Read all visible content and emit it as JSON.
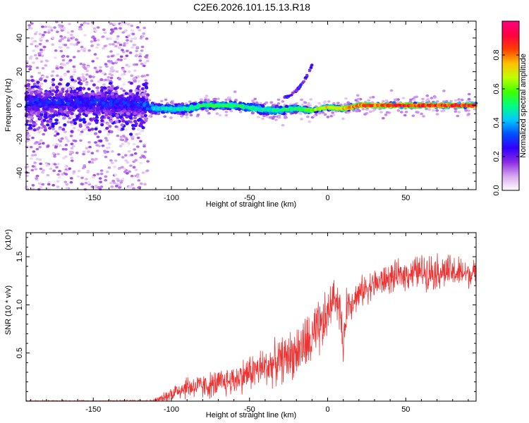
{
  "title": "C2E6.2026.101.15.13.R18",
  "chart_data": [
    {
      "type": "heatmap",
      "xlabel": "Height of straight line (km)",
      "ylabel": "Frequency (Hz)",
      "xlim": [
        -193,
        95
      ],
      "ylim": [
        -50,
        50
      ],
      "xticks": [
        -150,
        -100,
        -50,
        0,
        50
      ],
      "yticks": [
        -40,
        -20,
        0,
        20,
        40
      ],
      "xtick_labels": [
        "-150",
        "-100",
        "-50",
        "0",
        "50"
      ],
      "ytick_labels": [
        "-40",
        "-20",
        "0",
        "20",
        "40"
      ],
      "colorbar": {
        "label": "Normalized spectral amplitude",
        "range": [
          0.0,
          1.0
        ],
        "ticks": [
          0.0,
          0.2,
          0.4,
          0.6,
          0.8
        ],
        "tick_labels": [
          "0.0",
          "0.2",
          "0.4",
          "0.6",
          "0.8"
        ],
        "colors": [
          "#ffffff",
          "#d8a8f0",
          "#8a2be2",
          "#3000ff",
          "#0050ff",
          "#00c8ff",
          "#00ff80",
          "#40ff00",
          "#c0ff00",
          "#ffc000",
          "#ff4000",
          "#ff0040",
          "#ff0080"
        ]
      },
      "band": {
        "center_x": [
          -193,
          -120,
          -110,
          -90,
          -80,
          -60,
          -45,
          -35,
          -20,
          -10,
          0,
          10,
          20,
          50,
          95
        ],
        "center_y": [
          2,
          1,
          -2,
          -2,
          0,
          0,
          -2,
          -3,
          -2,
          -3,
          -1,
          -2,
          0,
          0,
          0
        ],
        "halfwidth": [
          10,
          10,
          4,
          4,
          3,
          3,
          4,
          4,
          3,
          2,
          2,
          2,
          2,
          2,
          2
        ],
        "peak_amplitude": [
          0.3,
          0.3,
          0.45,
          0.5,
          0.55,
          0.55,
          0.5,
          0.5,
          0.55,
          0.65,
          0.75,
          0.75,
          0.85,
          0.9,
          0.9
        ]
      },
      "scatter_extent": {
        "x": [
          -193,
          -115
        ],
        "y": [
          -50,
          50
        ],
        "amplitude": [
          0.0,
          0.15
        ]
      },
      "streak": {
        "x": [
          -28,
          -10
        ],
        "y": [
          5,
          24
        ]
      }
    },
    {
      "type": "line",
      "xlabel": "Height of straight line (km)",
      "ylabel": "SNR (10 * v/v)",
      "scale_label": "(x10⁴)",
      "xlim": [
        -193,
        95
      ],
      "ylim": [
        0,
        1.75
      ],
      "xticks": [
        -150,
        -100,
        -50,
        0,
        50
      ],
      "yticks": [
        0.5,
        1.0,
        1.5
      ],
      "xtick_labels": [
        "-150",
        "-100",
        "-50",
        "0",
        "50"
      ],
      "ytick_labels": [
        "0.5",
        "1.0",
        "1.5"
      ],
      "color": "#ee3333",
      "series": [
        {
          "name": "SNR",
          "x": [
            -193,
            -150,
            -112,
            -105,
            -100,
            -95,
            -90,
            -80,
            -70,
            -60,
            -50,
            -40,
            -30,
            -20,
            -12,
            -8,
            -3,
            0,
            3,
            5,
            8,
            10,
            12,
            18,
            25,
            35,
            50,
            60,
            70,
            85,
            95
          ],
          "mean": [
            0.0,
            0.0,
            0.005,
            0.03,
            0.08,
            0.12,
            0.15,
            0.15,
            0.18,
            0.22,
            0.3,
            0.35,
            0.42,
            0.52,
            0.6,
            0.68,
            0.78,
            0.9,
            1.05,
            1.1,
            0.95,
            0.5,
            1.0,
            1.08,
            1.18,
            1.25,
            1.32,
            1.35,
            1.35,
            1.33,
            1.32
          ],
          "spread": [
            0.01,
            0.01,
            0.01,
            0.05,
            0.08,
            0.1,
            0.12,
            0.12,
            0.14,
            0.15,
            0.18,
            0.2,
            0.22,
            0.25,
            0.3,
            0.3,
            0.28,
            0.25,
            0.18,
            0.18,
            0.25,
            0.12,
            0.2,
            0.15,
            0.15,
            0.15,
            0.15,
            0.17,
            0.18,
            0.16,
            0.12
          ]
        }
      ]
    }
  ]
}
